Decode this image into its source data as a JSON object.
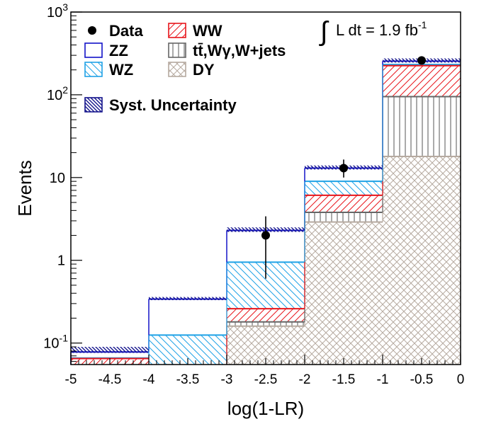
{
  "chart_data": {
    "type": "bar",
    "stacked": true,
    "y_scale": "log",
    "xlabel": "log(1-LR)",
    "ylabel": "Events",
    "xlim": [
      -5,
      0
    ],
    "ylim": [
      0.055,
      1000
    ],
    "x_ticks": [
      "-5",
      "-4.5",
      "-4",
      "-3.5",
      "-3",
      "-2.5",
      "-2",
      "-1.5",
      "-1",
      "-0.5",
      "0"
    ],
    "y_ticks": [
      {
        "value": 0.1,
        "base": "10",
        "exp": "-1"
      },
      {
        "value": 1,
        "label": "1"
      },
      {
        "value": 10,
        "label": "10"
      },
      {
        "value": 100,
        "base": "10",
        "exp": "2"
      },
      {
        "value": 1000,
        "base": "10",
        "exp": "3"
      }
    ],
    "luminosity_label": "L dt = 1.9 fb",
    "luminosity_exp": "-1",
    "bins": [
      [
        -5,
        -4
      ],
      [
        -4,
        -3
      ],
      [
        -3,
        -2
      ],
      [
        -2,
        -1
      ],
      [
        -1,
        0
      ]
    ],
    "stack_order": [
      "DY",
      "tt̄,Wγ,W+jets",
      "WW",
      "WZ",
      "ZZ"
    ],
    "cumulative_tops": {
      "DY": [
        0.0,
        0.0,
        0.16,
        2.9,
        18
      ],
      "tt̄,Wγ,W+jets": [
        0.0,
        0.0,
        0.18,
        3.8,
        95
      ],
      "WW": [
        0.065,
        0.0,
        0.26,
        6.1,
        225
      ],
      "WZ": [
        0.066,
        0.125,
        0.95,
        9.0,
        232
      ],
      "ZZ": [
        0.078,
        0.34,
        2.3,
        13.0,
        255
      ]
    },
    "syst_uncertainty": {
      "low": [
        0.076,
        0.33,
        2.2,
        12.5,
        245
      ],
      "high": [
        0.09,
        0.36,
        2.5,
        14.0,
        275
      ]
    },
    "data": {
      "x": [
        -2.5,
        -1.5,
        -0.5
      ],
      "y": [
        2,
        13,
        260
      ],
      "err_low": [
        0.6,
        10,
        245
      ],
      "err_high": [
        3.4,
        16.5,
        277
      ]
    },
    "legend": [
      {
        "name": "Data",
        "kind": "data"
      },
      {
        "name": "WW",
        "kind": "WW"
      },
      {
        "name": "ZZ",
        "kind": "ZZ"
      },
      {
        "name": "tt̄,Wγ,W+jets",
        "kind": "TOP"
      },
      {
        "name": "WZ",
        "kind": "WZ"
      },
      {
        "name": "DY",
        "kind": "DY"
      },
      {
        "name": "Syst. Uncertainty",
        "kind": "SYST"
      }
    ],
    "colors": {
      "DY": "#b6aaa0",
      "TOP": "#666666",
      "WW": "#e8161c",
      "WZ": "#1fa2e6",
      "ZZ": "#1212c8",
      "SYST": "#14148c",
      "data": "#000000"
    }
  }
}
